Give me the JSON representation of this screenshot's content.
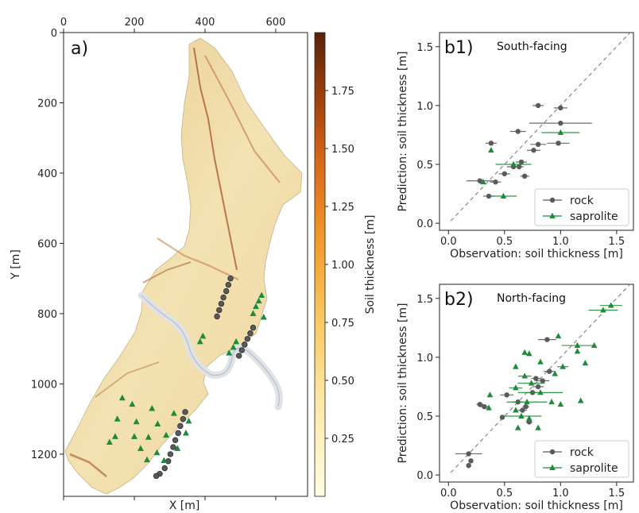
{
  "colors": {
    "rock": "#5a5a5a",
    "saprolite": "#1f8a3a",
    "one_to_one": "#888888",
    "river": "#d9dde2",
    "terrain_light": "#f1e4b8",
    "terrain_dark": "#8a3a1a"
  },
  "chart_data": [
    {
      "id": "a",
      "type": "heatmap",
      "panel_label": "a)",
      "xlabel": "X [m]",
      "ylabel": "Y [m]",
      "xticks": [
        0,
        200,
        400,
        600
      ],
      "yticks": [
        0,
        200,
        400,
        600,
        800,
        1000,
        1200
      ],
      "xlim": [
        0,
        690
      ],
      "ylim": [
        0,
        1320
      ],
      "colorbar": {
        "label": "Soil thickness [m]",
        "ticks": [
          "0.25",
          "0.50",
          "0.75",
          "1.00",
          "1.25",
          "1.50",
          "1.75"
        ],
        "range": [
          0,
          2.0
        ],
        "colormap": "YlOrBr"
      },
      "rock_points": [
        [
          472,
          700
        ],
        [
          466,
          718
        ],
        [
          460,
          736
        ],
        [
          452,
          754
        ],
        [
          446,
          772
        ],
        [
          440,
          790
        ],
        [
          434,
          808
        ],
        [
          536,
          840
        ],
        [
          528,
          856
        ],
        [
          520,
          872
        ],
        [
          512,
          888
        ],
        [
          504,
          904
        ],
        [
          496,
          920
        ],
        [
          344,
          1080
        ],
        [
          338,
          1100
        ],
        [
          330,
          1120
        ],
        [
          324,
          1140
        ],
        [
          316,
          1160
        ],
        [
          310,
          1180
        ],
        [
          302,
          1200
        ],
        [
          296,
          1220
        ],
        [
          286,
          1240
        ],
        [
          272,
          1256
        ],
        [
          262,
          1262
        ]
      ],
      "saprolite_points": [
        [
          560,
          748
        ],
        [
          552,
          764
        ],
        [
          544,
          780
        ],
        [
          536,
          800
        ],
        [
          566,
          810
        ],
        [
          488,
          880
        ],
        [
          480,
          896
        ],
        [
          468,
          912
        ],
        [
          394,
          864
        ],
        [
          386,
          880
        ],
        [
          166,
          1040
        ],
        [
          194,
          1058
        ],
        [
          250,
          1070
        ],
        [
          312,
          1084
        ],
        [
          152,
          1100
        ],
        [
          206,
          1108
        ],
        [
          266,
          1114
        ],
        [
          354,
          1106
        ],
        [
          146,
          1150
        ],
        [
          200,
          1150
        ],
        [
          240,
          1152
        ],
        [
          290,
          1146
        ],
        [
          346,
          1140
        ],
        [
          130,
          1166
        ],
        [
          218,
          1184
        ],
        [
          264,
          1196
        ],
        [
          322,
          1184
        ],
        [
          236,
          1216
        ],
        [
          284,
          1218
        ]
      ]
    },
    {
      "id": "b1",
      "type": "scatter",
      "panel_label": "b1)",
      "annotation": "South-facing",
      "xlabel": "Observation: soil thickness [m]",
      "ylabel": "Prediction: soil thickness [m]",
      "xlim": [
        -0.08,
        1.65
      ],
      "ylim": [
        -0.06,
        1.62
      ],
      "xticks": [
        0.0,
        0.5,
        1.0,
        1.5
      ],
      "yticks": [
        0.0,
        0.5,
        1.0,
        1.5
      ],
      "legend_position": "lower-right",
      "series": [
        {
          "name": "rock",
          "marker": "circle",
          "points": [
            {
              "x": 0.8,
              "y": 1.0,
              "err": 0.05
            },
            {
              "x": 1.0,
              "y": 0.98,
              "err": 0.06
            },
            {
              "x": 0.62,
              "y": 0.78,
              "err": 0.07
            },
            {
              "x": 1.0,
              "y": 0.85,
              "err": 0.28
            },
            {
              "x": 0.38,
              "y": 0.68,
              "err": 0.05
            },
            {
              "x": 0.8,
              "y": 0.67,
              "err": 0.07
            },
            {
              "x": 0.98,
              "y": 0.68,
              "err": 0.1
            },
            {
              "x": 0.76,
              "y": 0.62,
              "err": 0.06
            },
            {
              "x": 0.65,
              "y": 0.52,
              "err": 0.05
            },
            {
              "x": 0.58,
              "y": 0.48,
              "err": 0.06
            },
            {
              "x": 0.63,
              "y": 0.48,
              "err": 0.04
            },
            {
              "x": 0.5,
              "y": 0.42,
              "err": 0.05
            },
            {
              "x": 0.68,
              "y": 0.4,
              "err": 0.04
            },
            {
              "x": 0.28,
              "y": 0.36,
              "err": 0.12
            },
            {
              "x": 0.42,
              "y": 0.35,
              "err": 0.05
            },
            {
              "x": 0.36,
              "y": 0.23,
              "err": 0.05
            }
          ]
        },
        {
          "name": "saprolite",
          "marker": "triangle",
          "points": [
            {
              "x": 1.0,
              "y": 0.77,
              "err": 0.17
            },
            {
              "x": 0.38,
              "y": 0.62,
              "err": 0.0
            },
            {
              "x": 0.58,
              "y": 0.5,
              "err": 0.16
            },
            {
              "x": 0.31,
              "y": 0.35,
              "err": 0.0
            },
            {
              "x": 0.49,
              "y": 0.23,
              "err": 0.12
            }
          ]
        }
      ]
    },
    {
      "id": "b2",
      "type": "scatter",
      "panel_label": "b2)",
      "annotation": "North-facing",
      "xlabel": "Observation: soil thickness [m]",
      "ylabel": "Prediction: soil thickness [m]",
      "xlim": [
        -0.08,
        1.65
      ],
      "ylim": [
        -0.06,
        1.62
      ],
      "xticks": [
        0.0,
        0.5,
        1.0,
        1.5
      ],
      "yticks": [
        0.0,
        0.5,
        1.0,
        1.5
      ],
      "legend_position": "lower-right",
      "series": [
        {
          "name": "rock",
          "marker": "circle",
          "points": [
            {
              "x": 0.18,
              "y": 0.18,
              "err": 0.12
            },
            {
              "x": 0.18,
              "y": 0.08,
              "err": 0.0
            },
            {
              "x": 0.2,
              "y": 0.12,
              "err": 0.0
            },
            {
              "x": 0.28,
              "y": 0.6,
              "err": 0.03
            },
            {
              "x": 0.32,
              "y": 0.58,
              "err": 0.04
            },
            {
              "x": 0.48,
              "y": 0.49,
              "err": 0.0
            },
            {
              "x": 0.52,
              "y": 0.68,
              "err": 0.06
            },
            {
              "x": 0.62,
              "y": 0.62,
              "err": 0.05
            },
            {
              "x": 0.66,
              "y": 0.55,
              "err": 0.04
            },
            {
              "x": 0.69,
              "y": 0.58,
              "err": 0.03
            },
            {
              "x": 0.72,
              "y": 0.45,
              "err": 0.03
            },
            {
              "x": 0.75,
              "y": 0.7,
              "err": 0.04
            },
            {
              "x": 0.8,
              "y": 0.75,
              "err": 0.05
            },
            {
              "x": 0.84,
              "y": 0.8,
              "err": 0.06
            },
            {
              "x": 0.9,
              "y": 0.88,
              "err": 0.05
            },
            {
              "x": 0.88,
              "y": 1.15,
              "err": 0.08
            },
            {
              "x": 0.78,
              "y": 0.82,
              "err": 0.04
            }
          ]
        },
        {
          "name": "saprolite",
          "marker": "triangle",
          "points": [
            {
              "x": 1.45,
              "y": 1.44,
              "err": 0.1
            },
            {
              "x": 1.38,
              "y": 1.4,
              "err": 0.13
            },
            {
              "x": 0.98,
              "y": 1.18,
              "err": 0.0
            },
            {
              "x": 1.15,
              "y": 1.1,
              "err": 0.14
            },
            {
              "x": 1.3,
              "y": 1.1,
              "err": 0.0
            },
            {
              "x": 1.15,
              "y": 1.05,
              "err": 0.0
            },
            {
              "x": 1.22,
              "y": 0.95,
              "err": 0.0
            },
            {
              "x": 1.02,
              "y": 0.92,
              "err": 0.05
            },
            {
              "x": 0.68,
              "y": 1.04,
              "err": 0.0
            },
            {
              "x": 0.72,
              "y": 1.03,
              "err": 0.0
            },
            {
              "x": 0.82,
              "y": 0.96,
              "err": 0.0
            },
            {
              "x": 0.6,
              "y": 0.92,
              "err": 0.0
            },
            {
              "x": 0.68,
              "y": 0.84,
              "err": 0.06
            },
            {
              "x": 0.95,
              "y": 0.86,
              "err": 0.0
            },
            {
              "x": 0.74,
              "y": 0.78,
              "err": 0.12
            },
            {
              "x": 0.82,
              "y": 0.7,
              "err": 0.2
            },
            {
              "x": 0.6,
              "y": 0.74,
              "err": 0.06
            },
            {
              "x": 0.37,
              "y": 0.68,
              "err": 0.0
            },
            {
              "x": 0.7,
              "y": 0.62,
              "err": 0.18
            },
            {
              "x": 0.92,
              "y": 0.62,
              "err": 0.0
            },
            {
              "x": 1.0,
              "y": 0.6,
              "err": 0.0
            },
            {
              "x": 1.18,
              "y": 0.63,
              "err": 0.0
            },
            {
              "x": 0.6,
              "y": 0.55,
              "err": 0.0
            },
            {
              "x": 0.65,
              "y": 0.5,
              "err": 0.18
            },
            {
              "x": 0.72,
              "y": 0.48,
              "err": 0.0
            },
            {
              "x": 0.36,
              "y": 0.57,
              "err": 0.0
            },
            {
              "x": 0.62,
              "y": 0.4,
              "err": 0.0
            },
            {
              "x": 0.8,
              "y": 0.4,
              "err": 0.0
            }
          ]
        }
      ]
    }
  ]
}
